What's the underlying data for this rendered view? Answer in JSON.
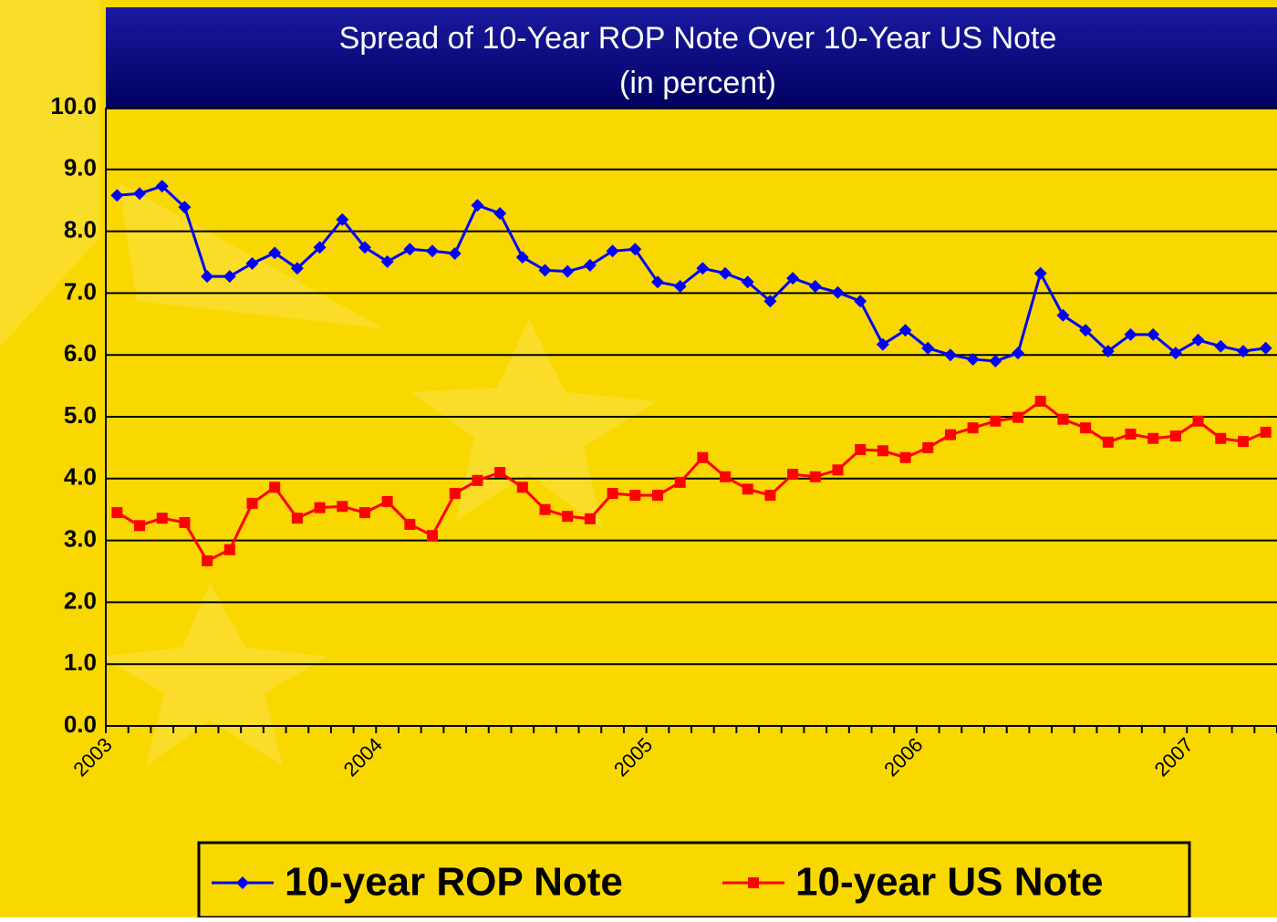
{
  "chart_data": {
    "type": "line",
    "title": "Spread of 10-Year ROP Note Over 10-Year US Note",
    "subtitle": "(in percent)",
    "categories": [
      "2003",
      null,
      null,
      null,
      null,
      null,
      null,
      null,
      null,
      null,
      null,
      null,
      "2004",
      null,
      null,
      null,
      null,
      null,
      null,
      null,
      null,
      null,
      null,
      null,
      "2005",
      null,
      null,
      null,
      null,
      null,
      null,
      null,
      null,
      null,
      null,
      null,
      "2006",
      null,
      null,
      null,
      null,
      null,
      null,
      null,
      null,
      null,
      null,
      null,
      "2007",
      null,
      null,
      null
    ],
    "series": [
      {
        "name": "10-year ROP Note",
        "color": "#0000ff",
        "marker": "diamond",
        "values": [
          8.58,
          8.61,
          8.73,
          8.39,
          7.27,
          7.27,
          7.48,
          7.65,
          7.4,
          7.74,
          8.19,
          7.74,
          7.51,
          7.71,
          7.68,
          7.64,
          8.42,
          8.29,
          7.58,
          7.37,
          7.35,
          7.45,
          7.68,
          7.71,
          7.18,
          7.11,
          7.4,
          7.32,
          7.18,
          6.87,
          7.24,
          7.11,
          7.01,
          6.87,
          6.17,
          6.4,
          6.11,
          6.0,
          5.93,
          5.9,
          6.03,
          7.32,
          6.64,
          6.4,
          6.06,
          6.33,
          6.33,
          6.03,
          6.24,
          6.14,
          6.06,
          6.11
        ]
      },
      {
        "name": "10-year US Note",
        "color": "#ff0000",
        "marker": "square",
        "values": [
          3.45,
          3.24,
          3.36,
          3.29,
          2.67,
          2.85,
          3.6,
          3.86,
          3.36,
          3.53,
          3.55,
          3.45,
          3.63,
          3.26,
          3.08,
          3.76,
          3.97,
          4.1,
          3.86,
          3.5,
          3.39,
          3.35,
          3.76,
          3.73,
          3.73,
          3.94,
          4.34,
          4.03,
          3.83,
          3.73,
          4.07,
          4.03,
          4.14,
          4.47,
          4.45,
          4.34,
          4.5,
          4.71,
          4.82,
          4.93,
          4.99,
          5.25,
          4.96,
          4.82,
          4.59,
          4.72,
          4.65,
          4.69,
          4.93,
          4.65,
          4.6,
          4.75
        ]
      }
    ],
    "ylim": [
      0,
      10
    ],
    "yticks": [
      {
        "value": 0,
        "label": "0.0"
      },
      {
        "value": 1,
        "label": "1.0"
      },
      {
        "value": 2,
        "label": "2.0"
      },
      {
        "value": 3,
        "label": "3.0"
      },
      {
        "value": 4,
        "label": "4.0"
      },
      {
        "value": 5,
        "label": "5.0"
      },
      {
        "value": 6,
        "label": "6.0"
      },
      {
        "value": 7,
        "label": "7.0"
      },
      {
        "value": 8,
        "label": "8.0"
      },
      {
        "value": 9,
        "label": "9.0"
      },
      {
        "value": 10,
        "label": "10.0"
      }
    ],
    "grid": true,
    "legend": "bottom"
  }
}
